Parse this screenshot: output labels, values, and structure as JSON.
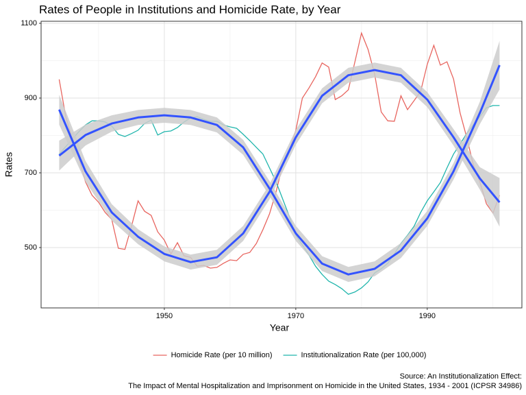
{
  "chart_data": {
    "type": "line",
    "title": "Rates of People in Institutions and Homicide Rate, by Year",
    "x_label": "Year",
    "y_label": "Rates",
    "caption": [
      "Source: An Institutionalization Effect:",
      "The Impact of Mental Hospitalization and Imprisonment on Homicide in the United States, 1934 - 2001 (ICPSR 34986)"
    ],
    "x": [
      1934,
      1935,
      1936,
      1937,
      1938,
      1939,
      1940,
      1941,
      1942,
      1943,
      1944,
      1945,
      1946,
      1947,
      1948,
      1949,
      1950,
      1951,
      1952,
      1953,
      1954,
      1955,
      1956,
      1957,
      1958,
      1959,
      1960,
      1961,
      1962,
      1963,
      1964,
      1965,
      1966,
      1967,
      1968,
      1969,
      1970,
      1971,
      1972,
      1973,
      1974,
      1975,
      1976,
      1977,
      1978,
      1979,
      1980,
      1981,
      1982,
      1983,
      1984,
      1985,
      1986,
      1987,
      1988,
      1989,
      1990,
      1991,
      1992,
      1993,
      1994,
      1995,
      1996,
      1997,
      1998,
      1999,
      2000,
      2001
    ],
    "series": [
      {
        "name": "Homicide Rate (per 10 million)",
        "color": "#e8655f",
        "values": [
          950,
          850,
          790,
          740,
          676,
          640,
          621,
          594,
          575,
          498,
          495,
          557,
          625,
          597,
          586,
          542,
          520,
          483,
          513,
          478,
          474,
          450,
          452,
          445,
          447,
          458,
          467,
          465,
          482,
          487,
          511,
          548,
          590,
          649,
          722,
          759,
          814,
          900,
          927,
          957,
          994,
          983,
          896,
          906,
          922,
          997,
          1074,
          1030,
          964,
          863,
          839,
          838,
          906,
          869,
          893,
          918,
          990,
          1041,
          988,
          997,
          951,
          860,
          795,
          722,
          676,
          617,
          592,
          640
        ]
      },
      {
        "name": "Institutionalization Rate (per 100,000)",
        "color": "#1fb5ac",
        "values": [
          750,
          770,
          790,
          810,
          828,
          839,
          839,
          836,
          825,
          803,
          797,
          805,
          814,
          832,
          841,
          801,
          810,
          812,
          821,
          836,
          847,
          850,
          843,
          838,
          838,
          828,
          823,
          819,
          803,
          786,
          768,
          750,
          713,
          676,
          630,
          584,
          533,
          507,
          480,
          450,
          428,
          410,
          401,
          390,
          375,
          381,
          392,
          408,
          432,
          443,
          458,
          483,
          511,
          533,
          557,
          594,
          625,
          649,
          674,
          713,
          750,
          777,
          805,
          828,
          850,
          874,
          880,
          880
        ]
      }
    ],
    "smooth_color": "#3353ff",
    "band_color": "#cccccc",
    "smooths": [
      {
        "x": [
          1934,
          1938,
          1942,
          1946,
          1950,
          1954,
          1958,
          1962,
          1966,
          1970,
          1974,
          1978,
          1982,
          1986,
          1990,
          1994,
          1998,
          2001
        ],
        "values": [
          869,
          704,
          594,
          529,
          483,
          461,
          474,
          538,
          649,
          795,
          906,
          961,
          975,
          961,
          896,
          795,
          685,
          621
        ],
        "lower": [
          829,
          676,
          572,
          509,
          463,
          441,
          454,
          518,
          629,
          775,
          886,
          941,
          955,
          941,
          876,
          773,
          655,
          556
        ],
        "upper": [
          909,
          732,
          616,
          549,
          503,
          481,
          494,
          558,
          669,
          815,
          926,
          981,
          995,
          981,
          916,
          817,
          715,
          686
        ]
      },
      {
        "x": [
          1934,
          1938,
          1942,
          1946,
          1950,
          1954,
          1958,
          1962,
          1966,
          1970,
          1974,
          1978,
          1982,
          1986,
          1990,
          1994,
          1998,
          2001
        ],
        "values": [
          746,
          801,
          832,
          848,
          854,
          848,
          828,
          768,
          658,
          538,
          457,
          428,
          443,
          492,
          578,
          704,
          860,
          988
        ],
        "lower": [
          706,
          773,
          810,
          828,
          834,
          828,
          808,
          748,
          638,
          518,
          437,
          408,
          423,
          472,
          558,
          682,
          830,
          923
        ],
        "upper": [
          786,
          829,
          854,
          868,
          874,
          868,
          848,
          788,
          678,
          558,
          477,
          448,
          463,
          512,
          598,
          726,
          890,
          1053
        ]
      }
    ],
    "xlim": [
      1931.25,
      2004.4
    ],
    "ylim": [
      338.5,
      1105.5
    ],
    "xticks": [
      1950,
      1970,
      1990
    ],
    "yticks": [
      500,
      700,
      900,
      1100
    ],
    "x_minor_ticks": [
      1940,
      1960,
      1980,
      2000
    ],
    "y_minor_ticks": [
      600,
      800,
      1000
    ],
    "grid": true,
    "legend": "bottom"
  }
}
